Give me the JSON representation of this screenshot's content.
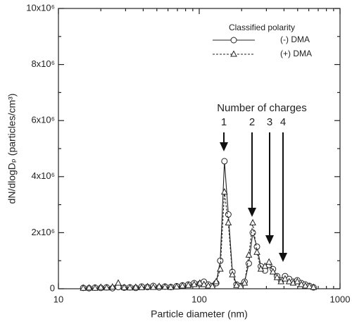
{
  "chart_data": {
    "type": "line",
    "xlabel": "Particle diameter (nm)",
    "ylabel": "dN/dlogDₚ (particles/cm³)",
    "xscale": "log",
    "xlim": [
      10,
      1000
    ],
    "xticks": [
      10,
      100,
      1000
    ],
    "ylim": [
      0,
      10000000
    ],
    "yticks": [
      0,
      {
        "value": 2000000,
        "label": "2x10⁶"
      },
      {
        "value": 4000000,
        "label": "4x10⁶"
      },
      {
        "value": 6000000,
        "label": "6x10⁶"
      },
      {
        "value": 8000000,
        "label": "8x10⁶"
      },
      {
        "value": 10000000,
        "label": "10x10⁶"
      }
    ],
    "legend_title": "Classified polarity",
    "legend_position": "upper right",
    "annotation": "Number of charges",
    "charge_labels": [
      "1",
      "2",
      "3",
      "4"
    ],
    "x": [
      15,
      16.5,
      18.2,
      20,
      22,
      24.2,
      26.6,
      29.3,
      32.2,
      35.4,
      39,
      42.9,
      47.2,
      51.9,
      57.1,
      62.8,
      69.1,
      76,
      83.6,
      92,
      101,
      108,
      116,
      124,
      132,
      141,
      151,
      161,
      172,
      184,
      197,
      210,
      225,
      240,
      257,
      274,
      293,
      313,
      334,
      357,
      381,
      407,
      435,
      465,
      497,
      531,
      567,
      606,
      648
    ],
    "series": [
      {
        "name": "(-) DMA",
        "color": "#222222",
        "marker": "circle",
        "dash": "solid",
        "values": [
          30000,
          20000,
          40000,
          30000,
          50000,
          20000,
          60000,
          40000,
          50000,
          30000,
          80000,
          60000,
          100000,
          50000,
          80000,
          60000,
          90000,
          120000,
          150000,
          200000,
          180000,
          250000,
          150000,
          100000,
          200000,
          1000000,
          4550000,
          2650000,
          600000,
          150000,
          100000,
          250000,
          900000,
          2000000,
          1500000,
          800000,
          650000,
          850000,
          700000,
          450000,
          300000,
          450000,
          350000,
          250000,
          300000,
          200000,
          150000,
          100000,
          50000
        ]
      },
      {
        "name": "(+) DMA",
        "color": "#222222",
        "marker": "triangle",
        "dash": "dashed",
        "values": [
          20000,
          30000,
          20000,
          50000,
          30000,
          60000,
          200000,
          40000,
          30000,
          50000,
          40000,
          70000,
          50000,
          80000,
          60000,
          50000,
          70000,
          100000,
          120000,
          150000,
          200000,
          150000,
          100000,
          80000,
          250000,
          700000,
          3450000,
          2350000,
          500000,
          120000,
          80000,
          200000,
          1200000,
          2350000,
          1300000,
          700000,
          800000,
          950000,
          600000,
          400000,
          250000,
          350000,
          250000,
          200000,
          250000,
          150000,
          100000,
          80000,
          50000
        ]
      }
    ]
  }
}
